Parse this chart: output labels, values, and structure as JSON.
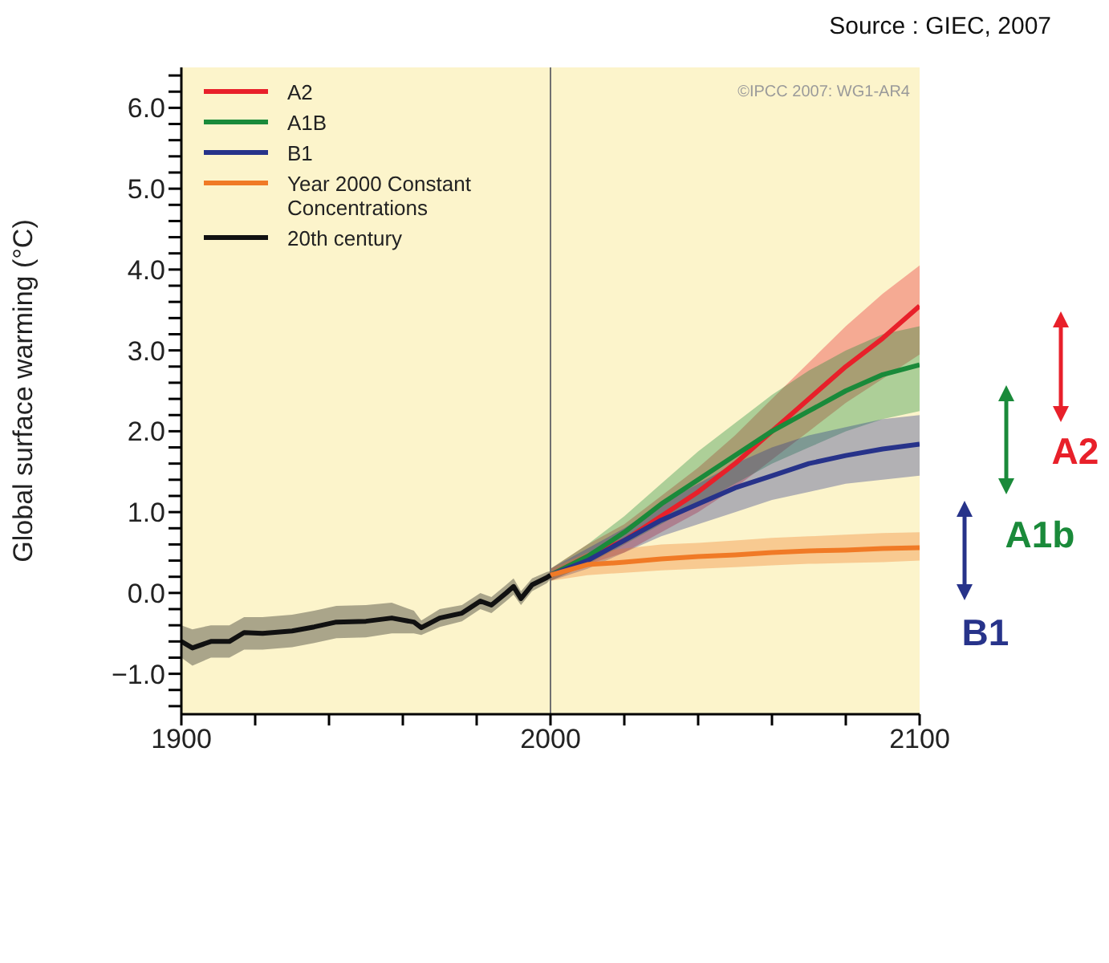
{
  "chart_data": {
    "type": "line",
    "ylabel": "Global surface warming (°C)",
    "annotations": [
      "Source : GIEC, 2007",
      "©IPCC 2007: WG1-AR4",
      "A2",
      "A1b",
      "B1"
    ],
    "xlim": [
      1900,
      2100
    ],
    "xticks": [
      1900,
      {
        "value": 1920,
        "label": null
      },
      {
        "value": 1940,
        "label": null
      },
      {
        "value": 1960,
        "label": null
      },
      {
        "value": 1980,
        "label": null
      },
      2000,
      {
        "value": 2020,
        "label": null
      },
      {
        "value": 2040,
        "label": null
      },
      {
        "value": 2060,
        "label": null
      },
      {
        "value": 2080,
        "label": null
      },
      2100
    ],
    "ylim": [
      -1.5,
      6.5
    ],
    "yticks": [
      {
        "value": -1.4,
        "label": null
      },
      {
        "value": -1.2,
        "label": null
      },
      {
        "value": -1,
        "label": "−1.0"
      },
      {
        "value": -0.8,
        "label": null
      },
      {
        "value": -0.6,
        "label": null
      },
      {
        "value": -0.4,
        "label": null
      },
      {
        "value": -0.2,
        "label": null
      },
      {
        "value": 0,
        "label": "0.0"
      },
      {
        "value": 0.2,
        "label": null
      },
      {
        "value": 0.4,
        "label": null
      },
      {
        "value": 0.6,
        "label": null
      },
      {
        "value": 0.8,
        "label": null
      },
      {
        "value": 1,
        "label": "1.0"
      },
      {
        "value": 1.2,
        "label": null
      },
      {
        "value": 1.4,
        "label": null
      },
      {
        "value": 1.6,
        "label": null
      },
      {
        "value": 1.8,
        "label": null
      },
      {
        "value": 2,
        "label": "2.0"
      },
      {
        "value": 2.2,
        "label": null
      },
      {
        "value": 2.4,
        "label": null
      },
      {
        "value": 2.6,
        "label": null
      },
      {
        "value": 2.8,
        "label": null
      },
      {
        "value": 3,
        "label": "3.0"
      },
      {
        "value": 3.2,
        "label": null
      },
      {
        "value": 3.4,
        "label": null
      },
      {
        "value": 3.6,
        "label": null
      },
      {
        "value": 3.8,
        "label": null
      },
      {
        "value": 4,
        "label": "4.0"
      },
      {
        "value": 4.2,
        "label": null
      },
      {
        "value": 4.4,
        "label": null
      },
      {
        "value": 4.6,
        "label": null
      },
      {
        "value": 4.8,
        "label": null
      },
      {
        "value": 5,
        "label": "5.0"
      },
      {
        "value": 5.2,
        "label": null
      },
      {
        "value": 5.4,
        "label": null
      },
      {
        "value": 5.6,
        "label": null
      },
      {
        "value": 5.8,
        "label": null
      },
      {
        "value": 6,
        "label": "6.0"
      },
      {
        "value": 6.2,
        "label": null
      },
      {
        "value": 6.4,
        "label": null
      }
    ],
    "grid": false,
    "legend": "top left",
    "marker": "none",
    "line_style": "solid",
    "ref_lines": [
      {
        "axis": "x",
        "value": 2000,
        "color": "#707070"
      }
    ],
    "series": [
      {
        "name": "A2",
        "color": "#e8202a",
        "x": [
          2000,
          2010,
          2020,
          2030,
          2040,
          2050,
          2060,
          2070,
          2080,
          2090,
          2100
        ],
        "values": [
          0.22,
          0.45,
          0.65,
          0.95,
          1.25,
          1.6,
          2.0,
          2.4,
          2.8,
          3.15,
          3.55
        ],
        "lower": [
          0.15,
          0.35,
          0.5,
          0.75,
          1.0,
          1.3,
          1.65,
          2.0,
          2.35,
          2.65,
          2.95
        ],
        "upper": [
          0.3,
          0.6,
          0.85,
          1.2,
          1.55,
          1.95,
          2.4,
          2.85,
          3.3,
          3.7,
          4.05
        ]
      },
      {
        "name": "A1B",
        "color": "#1a8a3a",
        "x": [
          2000,
          2010,
          2020,
          2030,
          2040,
          2050,
          2060,
          2070,
          2080,
          2090,
          2100
        ],
        "values": [
          0.22,
          0.45,
          0.75,
          1.1,
          1.4,
          1.7,
          2.0,
          2.25,
          2.5,
          2.7,
          2.82
        ],
        "lower": [
          0.15,
          0.35,
          0.6,
          0.85,
          1.1,
          1.35,
          1.6,
          1.8,
          2.0,
          2.15,
          2.25
        ],
        "upper": [
          0.3,
          0.6,
          0.95,
          1.35,
          1.75,
          2.1,
          2.45,
          2.75,
          3.0,
          3.2,
          3.3
        ]
      },
      {
        "name": "B1",
        "color": "#27338a",
        "x": [
          2000,
          2010,
          2020,
          2030,
          2040,
          2050,
          2060,
          2070,
          2080,
          2090,
          2100
        ],
        "values": [
          0.22,
          0.4,
          0.65,
          0.9,
          1.1,
          1.3,
          1.45,
          1.6,
          1.7,
          1.78,
          1.84
        ],
        "lower": [
          0.15,
          0.3,
          0.5,
          0.7,
          0.85,
          1.0,
          1.15,
          1.25,
          1.35,
          1.4,
          1.45
        ],
        "upper": [
          0.3,
          0.55,
          0.8,
          1.1,
          1.35,
          1.6,
          1.8,
          1.95,
          2.05,
          2.15,
          2.2
        ]
      },
      {
        "name": "Year 2000 Constant Concentrations",
        "color": "#f07a26",
        "x": [
          2000,
          2010,
          2020,
          2030,
          2040,
          2050,
          2060,
          2070,
          2080,
          2090,
          2100
        ],
        "values": [
          0.22,
          0.35,
          0.38,
          0.42,
          0.45,
          0.47,
          0.5,
          0.52,
          0.53,
          0.55,
          0.56
        ],
        "lower": [
          0.15,
          0.22,
          0.25,
          0.28,
          0.3,
          0.32,
          0.34,
          0.36,
          0.37,
          0.38,
          0.4
        ],
        "upper": [
          0.3,
          0.5,
          0.55,
          0.6,
          0.62,
          0.65,
          0.68,
          0.7,
          0.72,
          0.74,
          0.75
        ]
      },
      {
        "name": "20th century",
        "color": "#111111",
        "x": [
          1900,
          1903,
          1908,
          1913,
          1917,
          1922,
          1930,
          1936,
          1942,
          1950,
          1957,
          1963,
          1965,
          1970,
          1976,
          1981,
          1984,
          1988,
          1990,
          1992,
          1995,
          1999,
          2000
        ],
        "values": [
          -0.6,
          -0.68,
          -0.6,
          -0.6,
          -0.49,
          -0.5,
          -0.47,
          -0.42,
          -0.36,
          -0.35,
          -0.31,
          -0.36,
          -0.43,
          -0.31,
          -0.25,
          -0.1,
          -0.15,
          0.0,
          0.08,
          -0.07,
          0.1,
          0.19,
          0.22
        ],
        "lower": [
          -0.8,
          -0.9,
          -0.8,
          -0.8,
          -0.7,
          -0.7,
          -0.67,
          -0.62,
          -0.56,
          -0.55,
          -0.5,
          -0.5,
          -0.52,
          -0.42,
          -0.35,
          -0.2,
          -0.25,
          -0.1,
          -0.02,
          -0.15,
          0.02,
          0.12,
          0.17
        ],
        "upper": [
          -0.4,
          -0.45,
          -0.4,
          -0.4,
          -0.3,
          -0.3,
          -0.27,
          -0.22,
          -0.16,
          -0.15,
          -0.12,
          -0.22,
          -0.34,
          -0.2,
          -0.15,
          0.0,
          -0.05,
          0.1,
          0.18,
          0.02,
          0.18,
          0.26,
          0.27
        ]
      }
    ]
  }
}
